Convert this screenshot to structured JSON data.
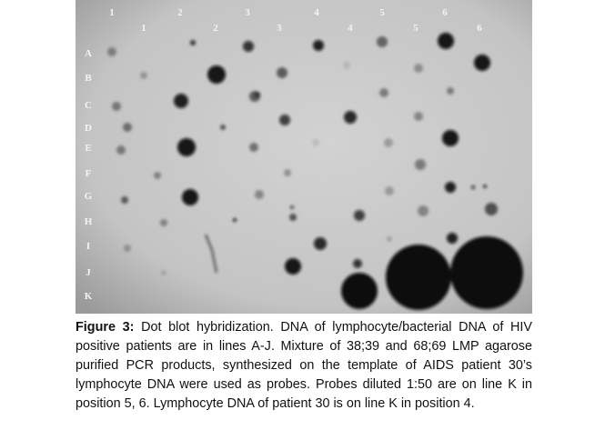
{
  "figure": {
    "column_labels_top": [
      "1",
      "2",
      "3",
      "4",
      "5",
      "6"
    ],
    "column_labels_bottom": [
      "1",
      "2",
      "3",
      "4",
      "5",
      "6"
    ],
    "row_labels": [
      "A",
      "B",
      "C",
      "D",
      "E",
      "F",
      "G",
      "H",
      "I",
      "J",
      "K"
    ],
    "caption": {
      "label": "Figure 3:",
      "text": "Dot blot hybridization. DNA of lymphocyte/bacterial DNA of HIV positive patients are in lines A-J. Mixture of 38;39 and 68;69 LMP agarose purified PCR products, synthesized on the template of AIDS patient 30’s lymphocyte DNA were used as probes. Probes diluted 1:50 are on line K in position 5, 6. Lymphocyte DNA of patient 30 is on line K in position 4."
    }
  }
}
